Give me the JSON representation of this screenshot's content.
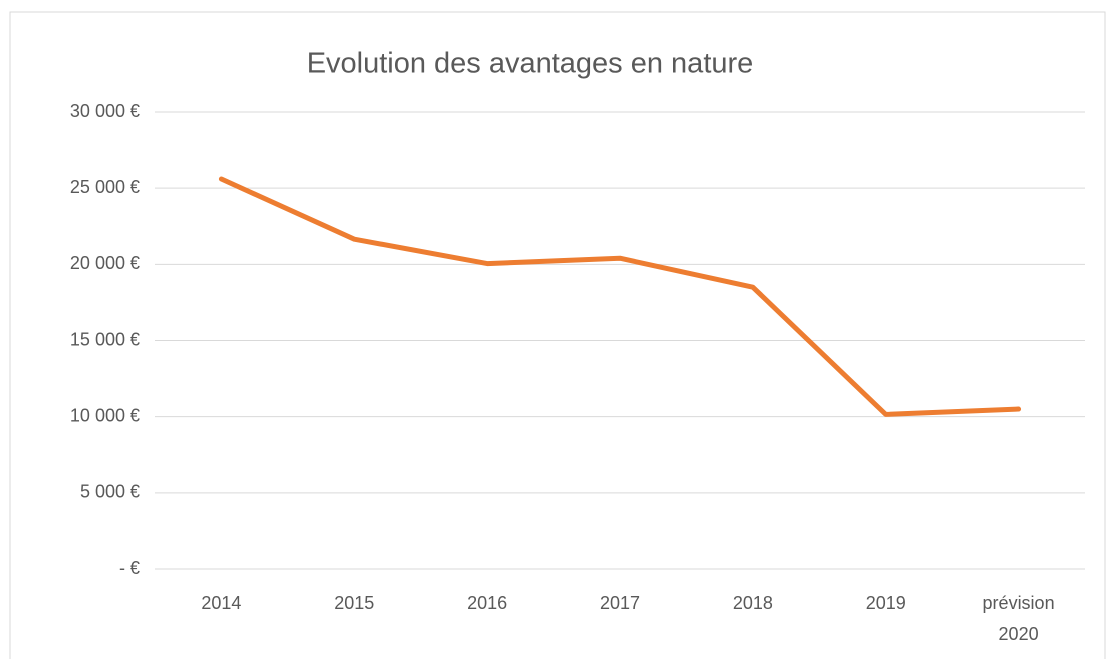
{
  "chart_data": {
    "type": "line",
    "title": "Evolution des avantages en nature",
    "categories": [
      "2014",
      "2015",
      "2016",
      "2017",
      "2018",
      "2019",
      "prévision 2020"
    ],
    "series": [
      {
        "name": "Avantages en nature",
        "color": "#ed7d31",
        "values": [
          25600,
          21650,
          20050,
          20400,
          18500,
          10150,
          10500
        ]
      }
    ],
    "ylim": [
      0,
      30000
    ],
    "yticks": [
      {
        "value": 0,
        "label": "-  €"
      },
      {
        "value": 5000,
        "label": "5 000 €"
      },
      {
        "value": 10000,
        "label": "10 000 €"
      },
      {
        "value": 15000,
        "label": "15 000 €"
      },
      {
        "value": 20000,
        "label": "20 000 €"
      },
      {
        "value": 25000,
        "label": "25 000 €"
      },
      {
        "value": 30000,
        "label": "30 000 €"
      }
    ],
    "grid": true
  }
}
